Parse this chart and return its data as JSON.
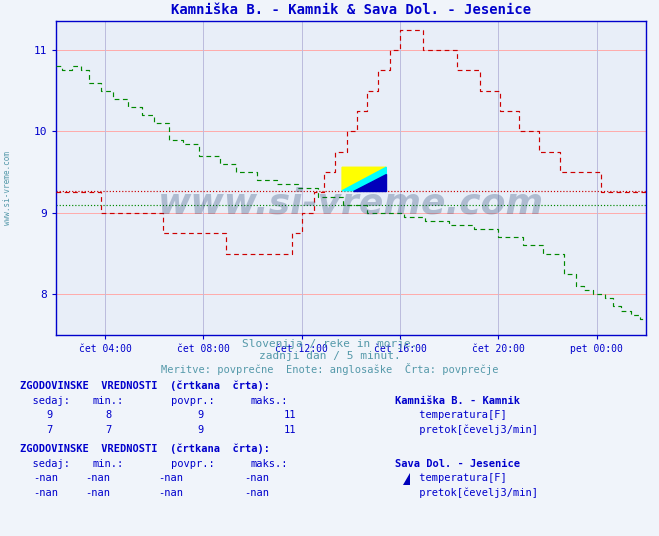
{
  "title": "Kamniška B. - Kamnik & Sava Dol. - Jesenice",
  "title_color": "#0000cc",
  "bg_color": "#e8eef8",
  "plot_bg_color": "#e8eef8",
  "outer_bg": "#f0f4fa",
  "grid_color_h": "#ffaaaa",
  "grid_color_v": "#bbbbdd",
  "ylim": [
    7.5,
    11.35
  ],
  "xlim": [
    0,
    288
  ],
  "xtick_positions": [
    24,
    72,
    120,
    168,
    216,
    264
  ],
  "xtick_labels": [
    "čet 04:00",
    "čet 08:00",
    "čet 12:00",
    "čet 16:00",
    "čet 20:00",
    "pet 00:00"
  ],
  "ytick_positions": [
    8,
    9,
    10,
    11
  ],
  "ytick_labels": [
    "8",
    "9",
    "10",
    "11"
  ],
  "temp_color": "#cc0000",
  "flow_color": "#008800",
  "avg_temp": 9.27,
  "avg_flow": 9.1,
  "subtitle1": "Slovenija / reke in morje.",
  "subtitle2": "zadnji dan / 5 minut.",
  "subtitle3": "Meritve: povrpečne  Enote: anglosaške  Črta: povrpečje",
  "text_color": "#5599aa",
  "watermark": "www.si-vreme.com",
  "watermark_color": "#1a3a6a",
  "station1_name": "Kamniška B. - Kamnik",
  "station2_name": "Sava Dol. - Jesenice",
  "s1_temp_sedaj": 9,
  "s1_temp_min": 8,
  "s1_temp_povpr": 9,
  "s1_temp_maks": 11,
  "s1_flow_sedaj": 7,
  "s1_flow_min": 7,
  "s1_flow_povpr": 9,
  "s1_flow_maks": 11,
  "s2_val": "-nan"
}
